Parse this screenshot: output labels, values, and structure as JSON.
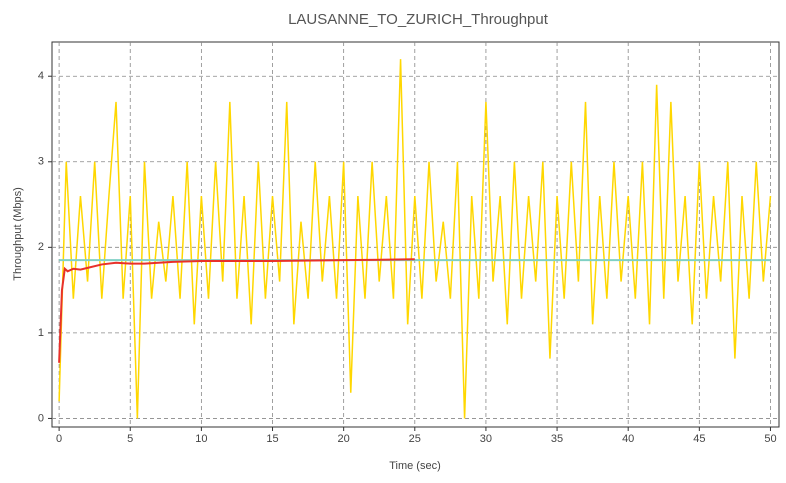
{
  "chart_data": {
    "type": "line",
    "title": "LAUSANNE_TO_ZURICH_Throughput",
    "xlabel": "Time (sec)",
    "ylabel": "Throughput (Mbps)",
    "xlim": [
      -0.5,
      50.6
    ],
    "ylim": [
      -0.1,
      4.4
    ],
    "xticks": [
      0,
      5,
      10,
      15,
      20,
      25,
      30,
      35,
      40,
      45,
      50
    ],
    "yticks": [
      0,
      1,
      2,
      3,
      4
    ],
    "grid": true,
    "series": [
      {
        "color": "#ffd700",
        "x": [
          0,
          0.5,
          1,
          1.5,
          2,
          2.5,
          3,
          3.5,
          4,
          4.5,
          5,
          5.5,
          6,
          6.5,
          7,
          7.5,
          8,
          8.5,
          9,
          9.5,
          10,
          10.5,
          11,
          11.5,
          12,
          12.5,
          13,
          13.5,
          14,
          14.5,
          15,
          15.5,
          16,
          16.5,
          17,
          17.5,
          18,
          18.5,
          19,
          19.5,
          20,
          20.5,
          21,
          21.5,
          22,
          22.5,
          23,
          23.5,
          24,
          24.5,
          25,
          25.5,
          26,
          26.5,
          27,
          27.5,
          28,
          28.5,
          29,
          29.5,
          30,
          30.5,
          31,
          31.5,
          32,
          32.5,
          33,
          33.5,
          34,
          34.5,
          35,
          35.5,
          36,
          36.5,
          37,
          37.5,
          38,
          38.5,
          39,
          39.5,
          40,
          40.5,
          41,
          41.5,
          42,
          42.5,
          43,
          43.5,
          44,
          44.5,
          45,
          45.5,
          46,
          46.5,
          47,
          47.5,
          48,
          48.5,
          49,
          49.5,
          50
        ],
        "values": [
          0.2,
          3.0,
          1.4,
          2.6,
          1.6,
          3.0,
          1.4,
          2.6,
          3.7,
          1.4,
          2.6,
          0.0,
          3.0,
          1.4,
          2.3,
          1.6,
          2.6,
          1.4,
          3.0,
          1.1,
          2.6,
          1.4,
          3.0,
          1.6,
          3.7,
          1.4,
          2.6,
          1.1,
          3.0,
          1.4,
          2.6,
          1.6,
          3.7,
          1.1,
          2.3,
          1.4,
          3.0,
          1.6,
          2.6,
          1.4,
          3.0,
          0.3,
          2.6,
          1.4,
          3.0,
          1.6,
          2.6,
          1.4,
          4.2,
          1.1,
          2.6,
          1.4,
          3.0,
          1.6,
          2.3,
          1.4,
          3.0,
          0.0,
          2.6,
          1.4,
          3.7,
          1.6,
          2.6,
          1.1,
          3.0,
          1.4,
          2.6,
          1.6,
          3.0,
          0.7,
          2.6,
          1.4,
          3.0,
          1.6,
          3.7,
          1.1,
          2.6,
          1.4,
          3.0,
          1.6,
          2.6,
          1.4,
          3.0,
          1.1,
          3.9,
          1.4,
          3.7,
          1.6,
          2.6,
          1.1,
          3.0,
          1.4,
          2.6,
          1.6,
          3.0,
          0.7,
          2.6,
          1.4,
          3.0,
          1.6,
          2.6
        ]
      },
      {
        "color": "#7fd1c4",
        "x": [
          0,
          50
        ],
        "values": [
          1.85,
          1.85
        ]
      },
      {
        "color": "#e8312a",
        "x": [
          0,
          0.2,
          0.4,
          0.6,
          1,
          1.5,
          2,
          3,
          4,
          5,
          6,
          8,
          10,
          15,
          20,
          25
        ],
        "values": [
          0.65,
          1.5,
          1.75,
          1.72,
          1.75,
          1.74,
          1.76,
          1.8,
          1.82,
          1.81,
          1.81,
          1.83,
          1.84,
          1.84,
          1.85,
          1.86
        ]
      }
    ]
  }
}
